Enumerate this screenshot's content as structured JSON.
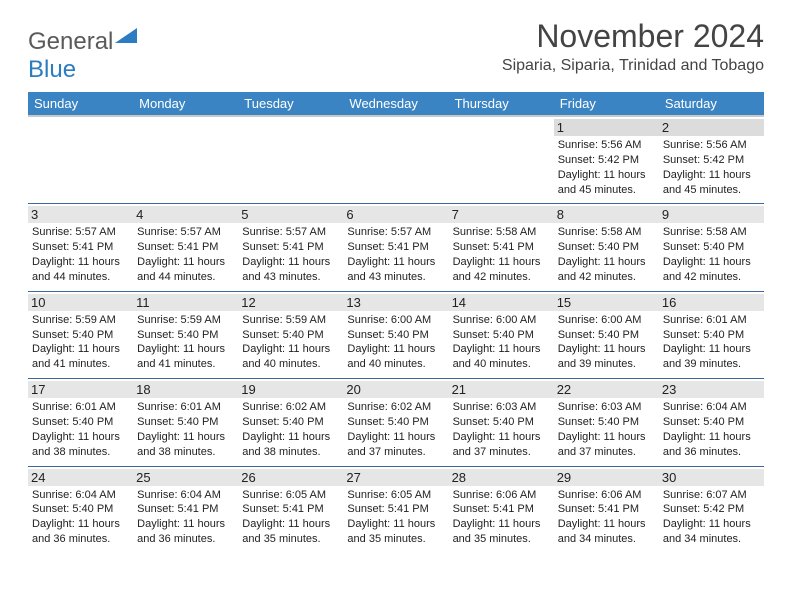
{
  "brand": {
    "part1": "General",
    "part2": "Blue"
  },
  "title": "November 2024",
  "location": "Siparia, Siparia, Trinidad and Tobago",
  "dayHeaders": [
    "Sunday",
    "Monday",
    "Tuesday",
    "Wednesday",
    "Thursday",
    "Friday",
    "Saturday"
  ],
  "colors": {
    "headerBg": "#3b84c4",
    "accent": "#2b7cc0",
    "rowStripe": "#e6e6e6",
    "border": "#3a6a9a"
  },
  "weeks": [
    [
      null,
      null,
      null,
      null,
      null,
      {
        "n": "1",
        "sr": "5:56 AM",
        "ss": "5:42 PM",
        "dl": "11 hours and 45 minutes."
      },
      {
        "n": "2",
        "sr": "5:56 AM",
        "ss": "5:42 PM",
        "dl": "11 hours and 45 minutes."
      }
    ],
    [
      {
        "n": "3",
        "sr": "5:57 AM",
        "ss": "5:41 PM",
        "dl": "11 hours and 44 minutes."
      },
      {
        "n": "4",
        "sr": "5:57 AM",
        "ss": "5:41 PM",
        "dl": "11 hours and 44 minutes."
      },
      {
        "n": "5",
        "sr": "5:57 AM",
        "ss": "5:41 PM",
        "dl": "11 hours and 43 minutes."
      },
      {
        "n": "6",
        "sr": "5:57 AM",
        "ss": "5:41 PM",
        "dl": "11 hours and 43 minutes."
      },
      {
        "n": "7",
        "sr": "5:58 AM",
        "ss": "5:41 PM",
        "dl": "11 hours and 42 minutes."
      },
      {
        "n": "8",
        "sr": "5:58 AM",
        "ss": "5:40 PM",
        "dl": "11 hours and 42 minutes."
      },
      {
        "n": "9",
        "sr": "5:58 AM",
        "ss": "5:40 PM",
        "dl": "11 hours and 42 minutes."
      }
    ],
    [
      {
        "n": "10",
        "sr": "5:59 AM",
        "ss": "5:40 PM",
        "dl": "11 hours and 41 minutes."
      },
      {
        "n": "11",
        "sr": "5:59 AM",
        "ss": "5:40 PM",
        "dl": "11 hours and 41 minutes."
      },
      {
        "n": "12",
        "sr": "5:59 AM",
        "ss": "5:40 PM",
        "dl": "11 hours and 40 minutes."
      },
      {
        "n": "13",
        "sr": "6:00 AM",
        "ss": "5:40 PM",
        "dl": "11 hours and 40 minutes."
      },
      {
        "n": "14",
        "sr": "6:00 AM",
        "ss": "5:40 PM",
        "dl": "11 hours and 40 minutes."
      },
      {
        "n": "15",
        "sr": "6:00 AM",
        "ss": "5:40 PM",
        "dl": "11 hours and 39 minutes."
      },
      {
        "n": "16",
        "sr": "6:01 AM",
        "ss": "5:40 PM",
        "dl": "11 hours and 39 minutes."
      }
    ],
    [
      {
        "n": "17",
        "sr": "6:01 AM",
        "ss": "5:40 PM",
        "dl": "11 hours and 38 minutes."
      },
      {
        "n": "18",
        "sr": "6:01 AM",
        "ss": "5:40 PM",
        "dl": "11 hours and 38 minutes."
      },
      {
        "n": "19",
        "sr": "6:02 AM",
        "ss": "5:40 PM",
        "dl": "11 hours and 38 minutes."
      },
      {
        "n": "20",
        "sr": "6:02 AM",
        "ss": "5:40 PM",
        "dl": "11 hours and 37 minutes."
      },
      {
        "n": "21",
        "sr": "6:03 AM",
        "ss": "5:40 PM",
        "dl": "11 hours and 37 minutes."
      },
      {
        "n": "22",
        "sr": "6:03 AM",
        "ss": "5:40 PM",
        "dl": "11 hours and 37 minutes."
      },
      {
        "n": "23",
        "sr": "6:04 AM",
        "ss": "5:40 PM",
        "dl": "11 hours and 36 minutes."
      }
    ],
    [
      {
        "n": "24",
        "sr": "6:04 AM",
        "ss": "5:40 PM",
        "dl": "11 hours and 36 minutes."
      },
      {
        "n": "25",
        "sr": "6:04 AM",
        "ss": "5:41 PM",
        "dl": "11 hours and 36 minutes."
      },
      {
        "n": "26",
        "sr": "6:05 AM",
        "ss": "5:41 PM",
        "dl": "11 hours and 35 minutes."
      },
      {
        "n": "27",
        "sr": "6:05 AM",
        "ss": "5:41 PM",
        "dl": "11 hours and 35 minutes."
      },
      {
        "n": "28",
        "sr": "6:06 AM",
        "ss": "5:41 PM",
        "dl": "11 hours and 35 minutes."
      },
      {
        "n": "29",
        "sr": "6:06 AM",
        "ss": "5:41 PM",
        "dl": "11 hours and 34 minutes."
      },
      {
        "n": "30",
        "sr": "6:07 AM",
        "ss": "5:42 PM",
        "dl": "11 hours and 34 minutes."
      }
    ]
  ],
  "labels": {
    "sunrise": "Sunrise: ",
    "sunset": "Sunset: ",
    "daylight": "Daylight: "
  }
}
